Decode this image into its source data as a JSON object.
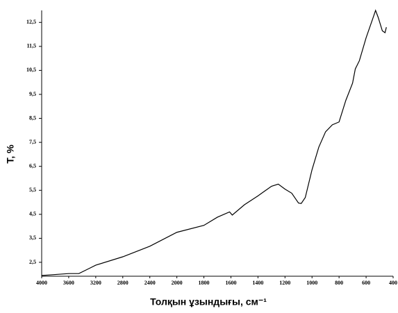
{
  "chart_data": {
    "type": "line",
    "xlabel": "Толқын ұзындығы, см⁻¹",
    "ylabel": "T, %",
    "color": "#000000",
    "xlim": [
      4000,
      400
    ],
    "xticks": [
      4000,
      3600,
      3200,
      2800,
      2400,
      2000,
      1800,
      1600,
      1400,
      1200,
      1000,
      800,
      600,
      400
    ],
    "ylim": [
      1.92,
      13.0
    ],
    "yticks": [
      {
        "value": 2.5,
        "label": "2,5"
      },
      {
        "value": 3.5,
        "label": "3,5"
      },
      {
        "value": 4.5,
        "label": "4,5"
      },
      {
        "value": 5.5,
        "label": "5,5"
      },
      {
        "value": 6.5,
        "label": "6,5"
      },
      {
        "value": 7.5,
        "label": "7,5"
      },
      {
        "value": 8.5,
        "label": "8,5"
      },
      {
        "value": 9.5,
        "label": "9,5"
      },
      {
        "value": 10.5,
        "label": "10,5"
      },
      {
        "value": 11.5,
        "label": "11,5"
      },
      {
        "value": 12.5,
        "label": "12,5"
      }
    ],
    "x": [
      4000,
      3600,
      3450,
      3200,
      2800,
      2400,
      2000,
      1800,
      1700,
      1610,
      1590,
      1500,
      1400,
      1300,
      1250,
      1200,
      1150,
      1100,
      1080,
      1050,
      1000,
      950,
      900,
      850,
      800,
      750,
      700,
      680,
      650,
      600,
      550,
      530,
      510,
      480,
      460,
      450
    ],
    "values": [
      1.95,
      2.03,
      2.03,
      2.38,
      2.73,
      3.17,
      3.75,
      4.04,
      4.38,
      4.6,
      4.47,
      4.9,
      5.27,
      5.67,
      5.76,
      5.55,
      5.38,
      4.97,
      4.95,
      5.2,
      6.36,
      7.3,
      7.94,
      8.23,
      8.35,
      9.25,
      9.97,
      10.56,
      10.9,
      11.86,
      12.67,
      13.0,
      12.7,
      12.15,
      12.07,
      12.3
    ]
  }
}
